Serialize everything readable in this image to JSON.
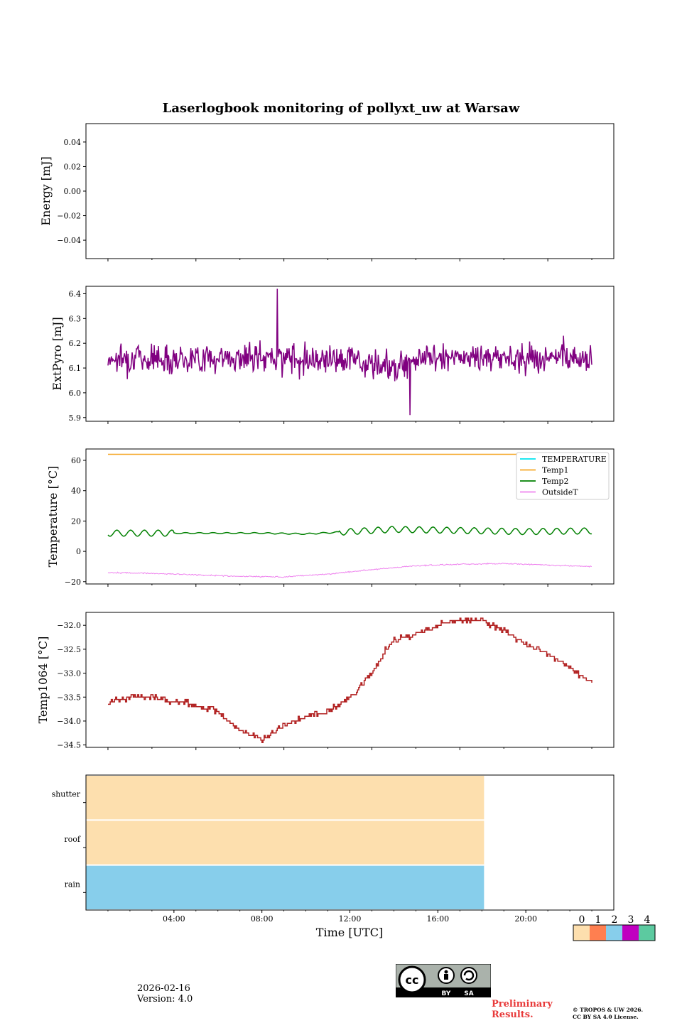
{
  "chart_data": [
    {
      "type": "line",
      "panel": "energy",
      "title": "Laserlogbook monitoring of pollyxt_uw at Warsaw",
      "ylabel": "Energy [mJ]",
      "yticks": [
        "0.04",
        "0.02",
        "0.00",
        "−0.02",
        "−0.04"
      ],
      "ylim": [
        -0.055,
        0.055
      ],
      "series": [],
      "note": "no data in panel"
    },
    {
      "type": "line",
      "panel": "extpyro",
      "ylabel": "ExtPyro [mJ]",
      "yticks": [
        "6.4",
        "6.3",
        "6.2",
        "6.1",
        "6.0",
        "5.9"
      ],
      "ylim": [
        5.885,
        6.43
      ],
      "series": [
        {
          "name": "ExtPyro",
          "color": "#800080",
          "summary": {
            "x_start_hour": 1.0,
            "x_end_hour": 23.0,
            "mean": 6.14,
            "noise": 0.05,
            "min": 5.91,
            "max": 6.42
          }
        }
      ]
    },
    {
      "type": "line",
      "panel": "temperature",
      "ylabel": "Temperature [°C]",
      "yticks": [
        "60",
        "40",
        "20",
        "0",
        "−20"
      ],
      "ylim": [
        -21.5,
        67.5
      ],
      "legend": [
        "TEMPERATURE",
        "Temp1",
        "Temp2",
        "OutsideT"
      ],
      "legend_position": "top-right",
      "series": [
        {
          "name": "TEMPERATURE",
          "color": "#00e5ee",
          "points": []
        },
        {
          "name": "Temp1",
          "color": "#f5a623",
          "points": [
            [
              1.0,
              64.0
            ],
            [
              23.0,
              64.0
            ]
          ]
        },
        {
          "name": "Temp2",
          "color": "#008000",
          "points": [
            [
              1.0,
              12.0
            ],
            [
              4.0,
              12.0
            ],
            [
              8.0,
              12.0
            ],
            [
              10.0,
              11.5
            ],
            [
              12.0,
              13.0
            ],
            [
              14.0,
              14.5
            ],
            [
              16.0,
              14.0
            ],
            [
              18.0,
              13.5
            ],
            [
              20.0,
              13.0
            ],
            [
              23.0,
              13.5
            ]
          ]
        },
        {
          "name": "OutsideT",
          "color": "#ee82ee",
          "points": [
            [
              1.0,
              -14.0
            ],
            [
              3.0,
              -14.5
            ],
            [
              5.0,
              -15.5
            ],
            [
              7.0,
              -16.5
            ],
            [
              9.0,
              -16.8
            ],
            [
              11.0,
              -15.0
            ],
            [
              13.0,
              -12.0
            ],
            [
              15.0,
              -9.5
            ],
            [
              17.0,
              -8.5
            ],
            [
              19.0,
              -8.0
            ],
            [
              21.0,
              -9.0
            ],
            [
              23.0,
              -10.0
            ]
          ]
        }
      ]
    },
    {
      "type": "line",
      "panel": "temp1064",
      "ylabel": "Temp1064 [°C]",
      "yticks": [
        "−32.0",
        "−32.5",
        "−33.0",
        "−33.5",
        "−34.0",
        "−34.5"
      ],
      "ylim": [
        -34.55,
        -31.73
      ],
      "series": [
        {
          "name": "Temp1064",
          "color": "#b22222",
          "points": [
            [
              1.0,
              -33.6
            ],
            [
              1.5,
              -33.55
            ],
            [
              2.0,
              -33.5
            ],
            [
              3.0,
              -33.5
            ],
            [
              4.0,
              -33.6
            ],
            [
              4.5,
              -33.6
            ],
            [
              5.0,
              -33.7
            ],
            [
              6.0,
              -33.8
            ],
            [
              6.5,
              -34.0
            ],
            [
              7.0,
              -34.2
            ],
            [
              7.5,
              -34.3
            ],
            [
              8.0,
              -34.4
            ],
            [
              8.5,
              -34.2
            ],
            [
              9.0,
              -34.1
            ],
            [
              10.0,
              -33.9
            ],
            [
              11.0,
              -33.8
            ],
            [
              12.0,
              -33.5
            ],
            [
              13.0,
              -33.0
            ],
            [
              13.5,
              -32.6
            ],
            [
              14.0,
              -32.3
            ],
            [
              15.0,
              -32.2
            ],
            [
              16.0,
              -32.0
            ],
            [
              17.0,
              -31.9
            ],
            [
              18.0,
              -31.9
            ],
            [
              19.0,
              -32.1
            ],
            [
              20.0,
              -32.4
            ],
            [
              21.0,
              -32.6
            ],
            [
              22.0,
              -32.9
            ],
            [
              23.0,
              -33.2
            ]
          ]
        }
      ]
    },
    {
      "type": "heatmap",
      "panel": "status",
      "xlabel": "Time [UTC]",
      "xticks": [
        "04:00",
        "08:00",
        "12:00",
        "16:00",
        "20:00"
      ],
      "xlim_hours": [
        0,
        24
      ],
      "rows": [
        "shutter",
        "roof",
        "rain"
      ],
      "segments": [
        {
          "row": "shutter",
          "start_hour": 0.0,
          "end_hour": 18.1,
          "value": 0
        },
        {
          "row": "roof",
          "start_hour": 0.0,
          "end_hour": 18.1,
          "value": 0
        },
        {
          "row": "rain",
          "start_hour": 0.0,
          "end_hour": 18.1,
          "value": 2
        }
      ],
      "colorbar": {
        "ticks": [
          "0",
          "1",
          "2",
          "3",
          "4"
        ],
        "colors": [
          "#fddfae",
          "#ff7f50",
          "#87ceeb",
          "#c000c0",
          "#5ccaa0"
        ]
      }
    }
  ],
  "footer": {
    "date": "2026-02-16",
    "version": "Version: 4.0",
    "preliminary": "Preliminary Results.",
    "copyright_line1": "© TROPOS & UW 2026.",
    "copyright_line2": "CC BY SA 4.0 License.",
    "license_badge": {
      "by": "BY",
      "sa": "SA",
      "cc": "cc"
    }
  }
}
